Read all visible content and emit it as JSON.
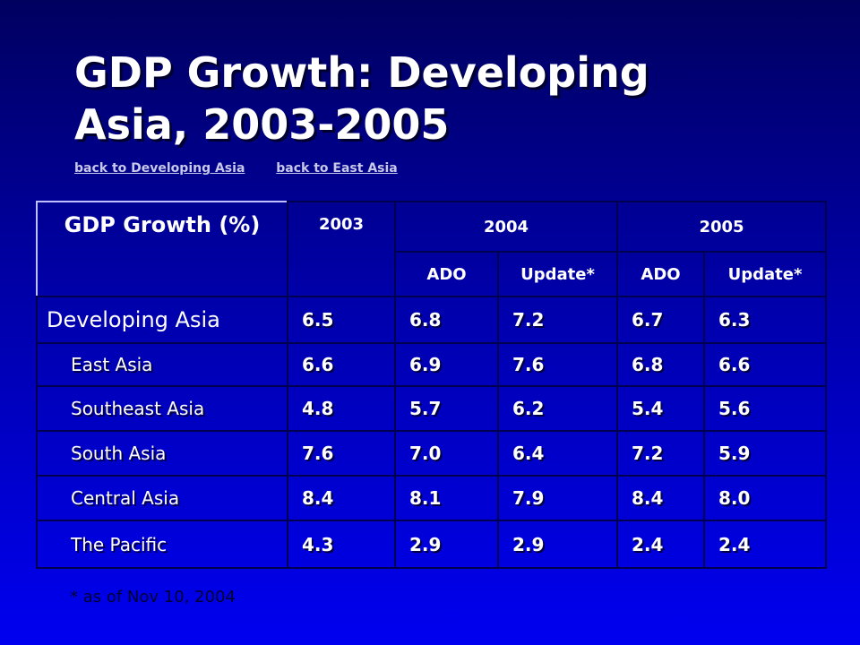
{
  "title": "GDP Growth: Developing Asia, 2003-2005",
  "links": [
    "back to Developing Asia",
    "back to East Asia"
  ],
  "table": {
    "corner": "GDP Growth (%)",
    "years": [
      "2003",
      "2004",
      "2005"
    ],
    "subheaders": [
      "ADO",
      "Update*",
      "ADO",
      "Update*"
    ],
    "rows": [
      [
        "Developing Asia",
        "6.5",
        "6.8",
        "7.2",
        "6.7",
        "6.3"
      ],
      [
        "East Asia",
        "6.6",
        "6.9",
        "7.6",
        "6.8",
        "6.6"
      ],
      [
        "Southeast Asia",
        "4.8",
        "5.7",
        "6.2",
        "5.4",
        "5.6"
      ],
      [
        "South Asia",
        "7.6",
        "7.0",
        "6.4",
        "7.2",
        "5.9"
      ],
      [
        "Central Asia",
        "8.4",
        "8.1",
        "7.9",
        "8.4",
        "8.0"
      ],
      [
        "The Pacific",
        "4.3",
        "2.9",
        "2.9",
        "2.4",
        "2.4"
      ]
    ]
  },
  "footnote": "* as of Nov 10, 2004"
}
